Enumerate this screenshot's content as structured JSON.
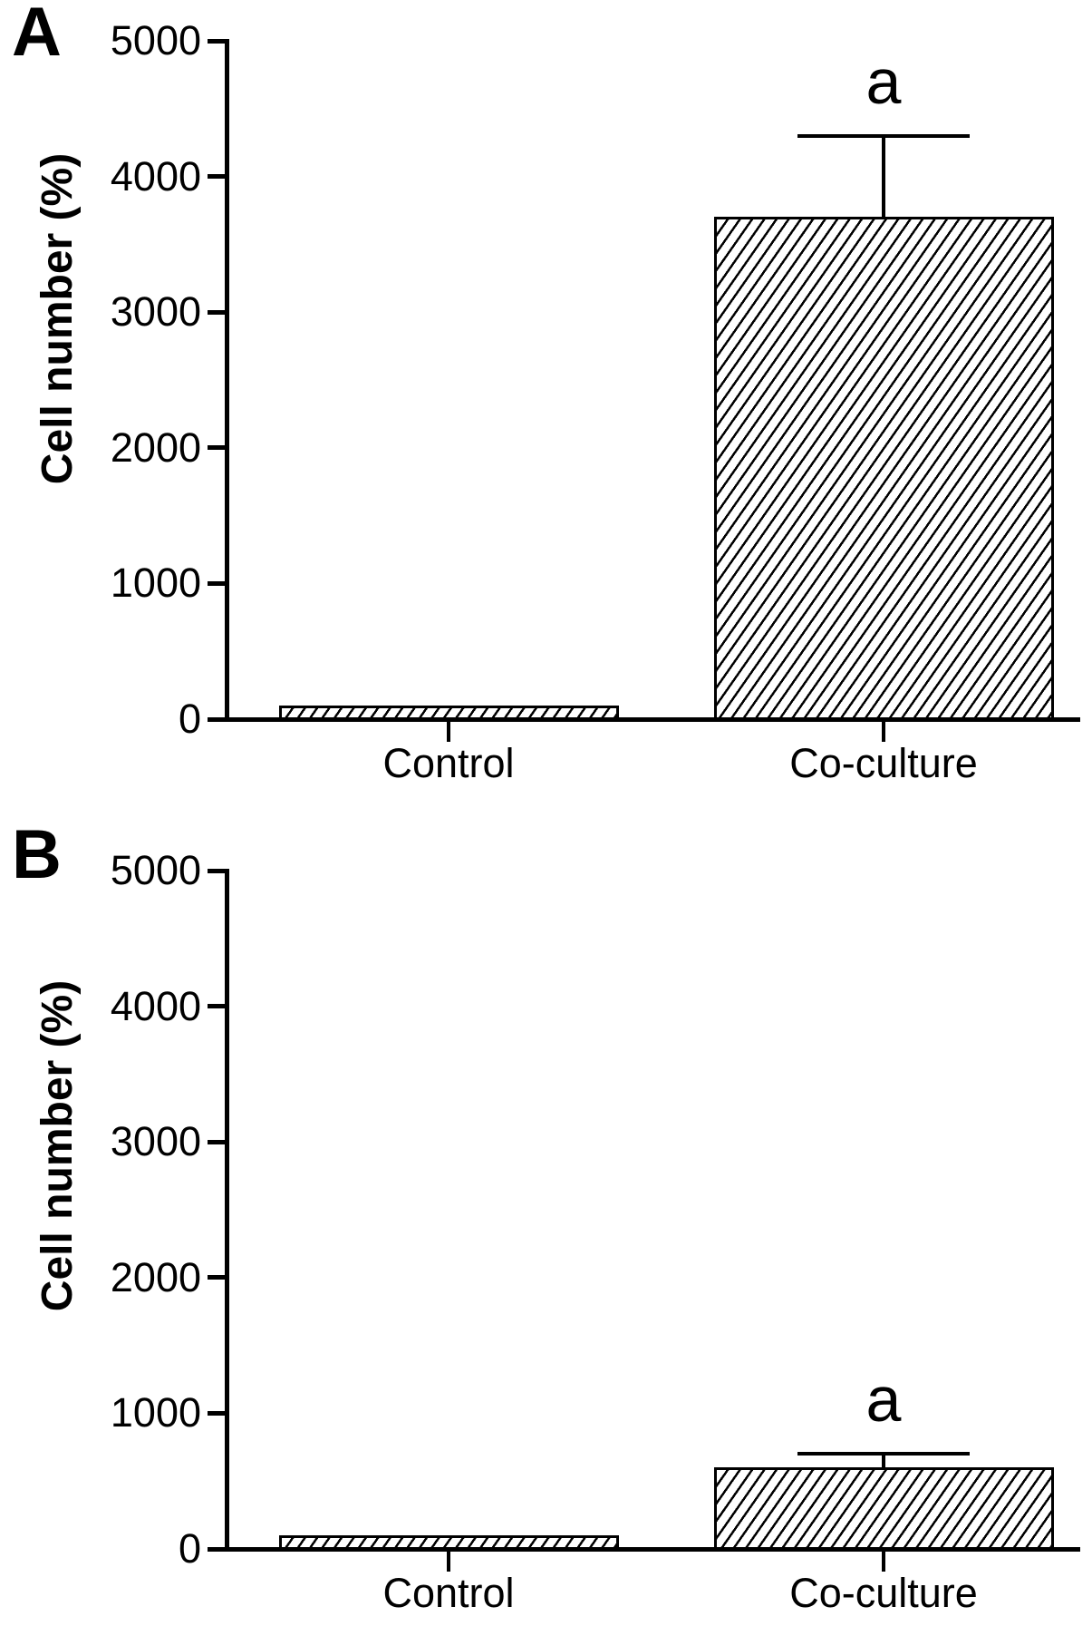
{
  "figure": {
    "background_color": "#ffffff",
    "ink_color": "#000000",
    "bar_fill_style": "diagonal-hatch",
    "panels": [
      "A",
      "B"
    ]
  },
  "chart_data": [
    {
      "type": "bar",
      "panel": "A",
      "title": "",
      "xlabel": "",
      "ylabel": "Cell number (%)",
      "categories": [
        "Control",
        "Co-culture"
      ],
      "values": [
        100,
        3700
      ],
      "errors_plus": [
        0,
        600
      ],
      "annotations": [
        "",
        "a"
      ],
      "ylim": [
        0,
        5000
      ],
      "yticks": [
        0,
        1000,
        2000,
        3000,
        4000,
        5000
      ],
      "grid": false,
      "legend": "none",
      "bar_fill": "white with black diagonal hatch"
    },
    {
      "type": "bar",
      "panel": "B",
      "title": "",
      "xlabel": "",
      "ylabel": "Cell number (%)",
      "categories": [
        "Control",
        "Co-culture"
      ],
      "values": [
        100,
        600
      ],
      "errors_plus": [
        0,
        100
      ],
      "annotations": [
        "",
        "a"
      ],
      "ylim": [
        0,
        5000
      ],
      "yticks": [
        0,
        1000,
        2000,
        3000,
        4000,
        5000
      ],
      "grid": false,
      "legend": "none",
      "bar_fill": "white with black diagonal hatch"
    }
  ]
}
